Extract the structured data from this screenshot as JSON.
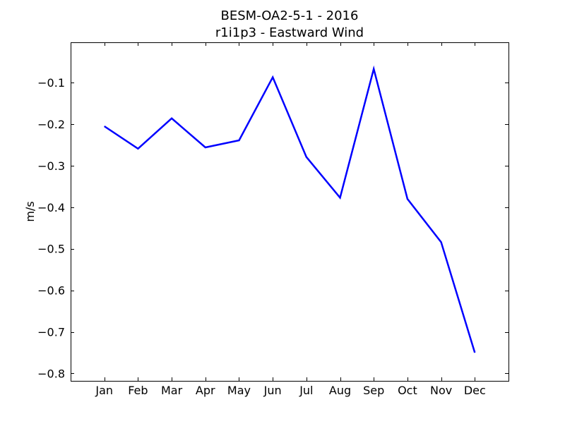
{
  "chart_data": {
    "type": "line",
    "title": "BESM-OA2-5-1 - 2016",
    "subtitle": "r1i1p3 - Eastward Wind",
    "xlabel": "",
    "ylabel": "m/s",
    "categories": [
      "Jan",
      "Feb",
      "Mar",
      "Apr",
      "May",
      "Jun",
      "Jul",
      "Aug",
      "Sep",
      "Oct",
      "Nov",
      "Dec"
    ],
    "series": [
      {
        "values": [
          -0.205,
          -0.259,
          -0.186,
          -0.256,
          -0.239,
          -0.087,
          -0.279,
          -0.377,
          -0.067,
          -0.38,
          -0.484,
          -0.75
        ],
        "color": "#0000ff"
      }
    ],
    "ylim": [
      -0.818,
      -0.003
    ],
    "yticks": [
      -0.1,
      -0.2,
      -0.3,
      -0.4,
      -0.5,
      -0.6,
      -0.7,
      -0.8
    ],
    "ytick_labels": [
      "−0.1",
      "−0.2",
      "−0.3",
      "−0.4",
      "−0.5",
      "−0.6",
      "−0.7",
      "−0.8"
    ],
    "grid": false,
    "legend": false
  }
}
